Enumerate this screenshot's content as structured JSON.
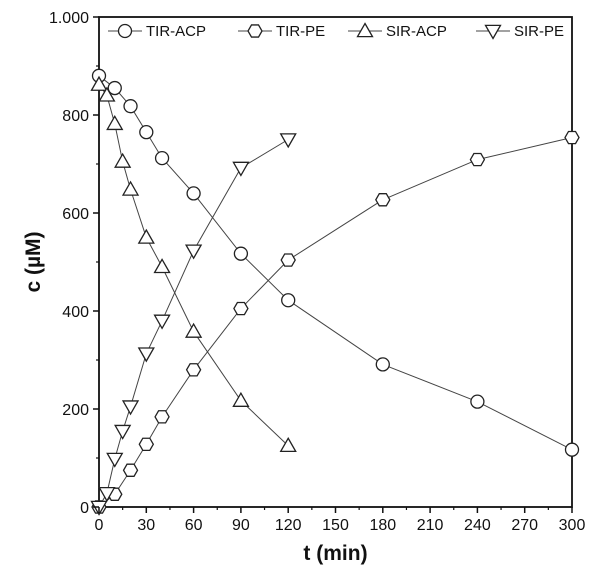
{
  "chart_data": {
    "type": "line",
    "xlabel": "t (min)",
    "ylabel": "c (µM)",
    "xlim": [
      0,
      300
    ],
    "ylim": [
      0,
      1000
    ],
    "xticks": [
      0,
      30,
      60,
      90,
      120,
      150,
      180,
      210,
      240,
      270,
      300
    ],
    "xtick_labels": [
      "0",
      "30",
      "60",
      "90",
      "120",
      "150",
      "180",
      "210",
      "240",
      "270",
      "300"
    ],
    "yticks": [
      0,
      200,
      400,
      600,
      800,
      1000
    ],
    "ytick_labels": [
      "0",
      "200",
      "400",
      "600",
      "800",
      "1.000"
    ],
    "grid": false,
    "legend_position": "top",
    "series": [
      {
        "name": "TIR-ACP",
        "marker": "circle",
        "x": [
          0,
          10,
          20,
          30,
          40,
          60,
          90,
          120,
          180,
          240,
          300
        ],
        "y": [
          880,
          855,
          818,
          765,
          712,
          640,
          517,
          422,
          291,
          215,
          117
        ]
      },
      {
        "name": "TIR-PE",
        "marker": "hexagon",
        "x": [
          0,
          10,
          20,
          30,
          40,
          60,
          90,
          120,
          180,
          240,
          300
        ],
        "y": [
          0,
          26,
          75,
          128,
          184,
          280,
          405,
          504,
          627,
          709,
          754
        ]
      },
      {
        "name": "SIR-ACP",
        "marker": "triangle-up",
        "x": [
          0,
          5,
          10,
          15,
          20,
          30,
          40,
          60,
          90,
          120
        ],
        "y": [
          862,
          840,
          782,
          705,
          648,
          550,
          490,
          358,
          217,
          125
        ]
      },
      {
        "name": "SIR-PE",
        "marker": "triangle-down",
        "x": [
          0,
          5,
          10,
          15,
          20,
          30,
          40,
          60,
          90,
          120
        ],
        "y": [
          0,
          28,
          98,
          155,
          205,
          313,
          380,
          523,
          692,
          750
        ]
      }
    ]
  }
}
